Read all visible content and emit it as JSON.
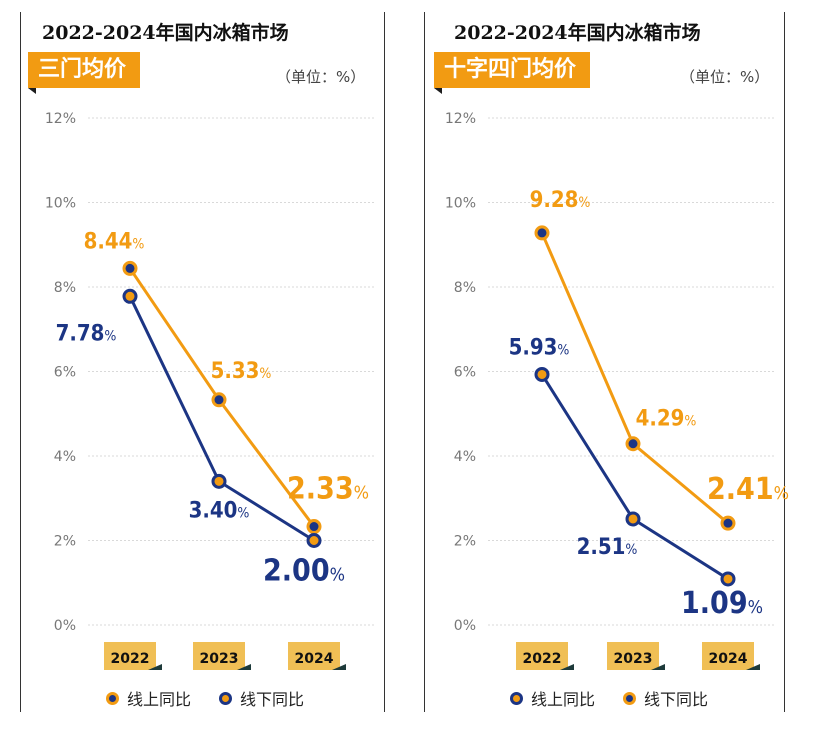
{
  "colors": {
    "online": "#f29b12",
    "offline": "#1c3584",
    "grid": "#d9d9d9",
    "year_bg": "#f0bf55",
    "year_tab": "#1d3a3a"
  },
  "chart_data": [
    {
      "type": "line",
      "title": "2022-2024年国内冰箱市场",
      "subtitle": "三门均价",
      "unit": "（单位：%）",
      "categories": [
        "2022",
        "2023",
        "2024"
      ],
      "y_ticks": [
        "0%",
        "2%",
        "4%",
        "6%",
        "8%",
        "10%",
        "12%"
      ],
      "ylim": [
        0,
        12
      ],
      "grid": true,
      "legend_placement": "bottom",
      "series": [
        {
          "name": "线上同比",
          "values": [
            8.44,
            5.33,
            2.33
          ],
          "labels": [
            "8.44",
            "5.33",
            "2.33"
          ],
          "color": "#f29b12",
          "marker_fill": "#1c3584"
        },
        {
          "name": "线下同比",
          "values": [
            7.78,
            3.4,
            2.0
          ],
          "labels": [
            "7.78",
            "3.40",
            "2.00"
          ],
          "color": "#1c3584",
          "marker_fill": "#f29b12"
        }
      ],
      "legend": [
        {
          "label": "线上同比",
          "fill": "#1c3584",
          "ring": "#f29b12"
        },
        {
          "label": "线下同比",
          "fill": "#f29b12",
          "ring": "#1c3584"
        }
      ]
    },
    {
      "type": "line",
      "title": "2022-2024年国内冰箱市场",
      "subtitle": "十字四门均价",
      "unit": "（单位：%）",
      "categories": [
        "2022",
        "2023",
        "2024"
      ],
      "y_ticks": [
        "0%",
        "2%",
        "4%",
        "6%",
        "8%",
        "10%",
        "12%"
      ],
      "ylim": [
        0,
        12
      ],
      "grid": true,
      "legend_placement": "bottom",
      "series": [
        {
          "name": "线上同比",
          "values": [
            9.28,
            4.29,
            2.41
          ],
          "labels": [
            "9.28",
            "4.29",
            "2.41"
          ],
          "color": "#f29b12",
          "marker_fill": "#1c3584"
        },
        {
          "name": "线下同比",
          "values": [
            5.93,
            2.51,
            1.09
          ],
          "labels": [
            "5.93",
            "2.51",
            "1.09"
          ],
          "color": "#1c3584",
          "marker_fill": "#f29b12"
        }
      ],
      "legend": [
        {
          "label": "线上同比",
          "fill": "#f29b12",
          "ring": "#1c3584"
        },
        {
          "label": "线下同比",
          "fill": "#1c3584",
          "ring": "#f29b12"
        }
      ]
    }
  ]
}
